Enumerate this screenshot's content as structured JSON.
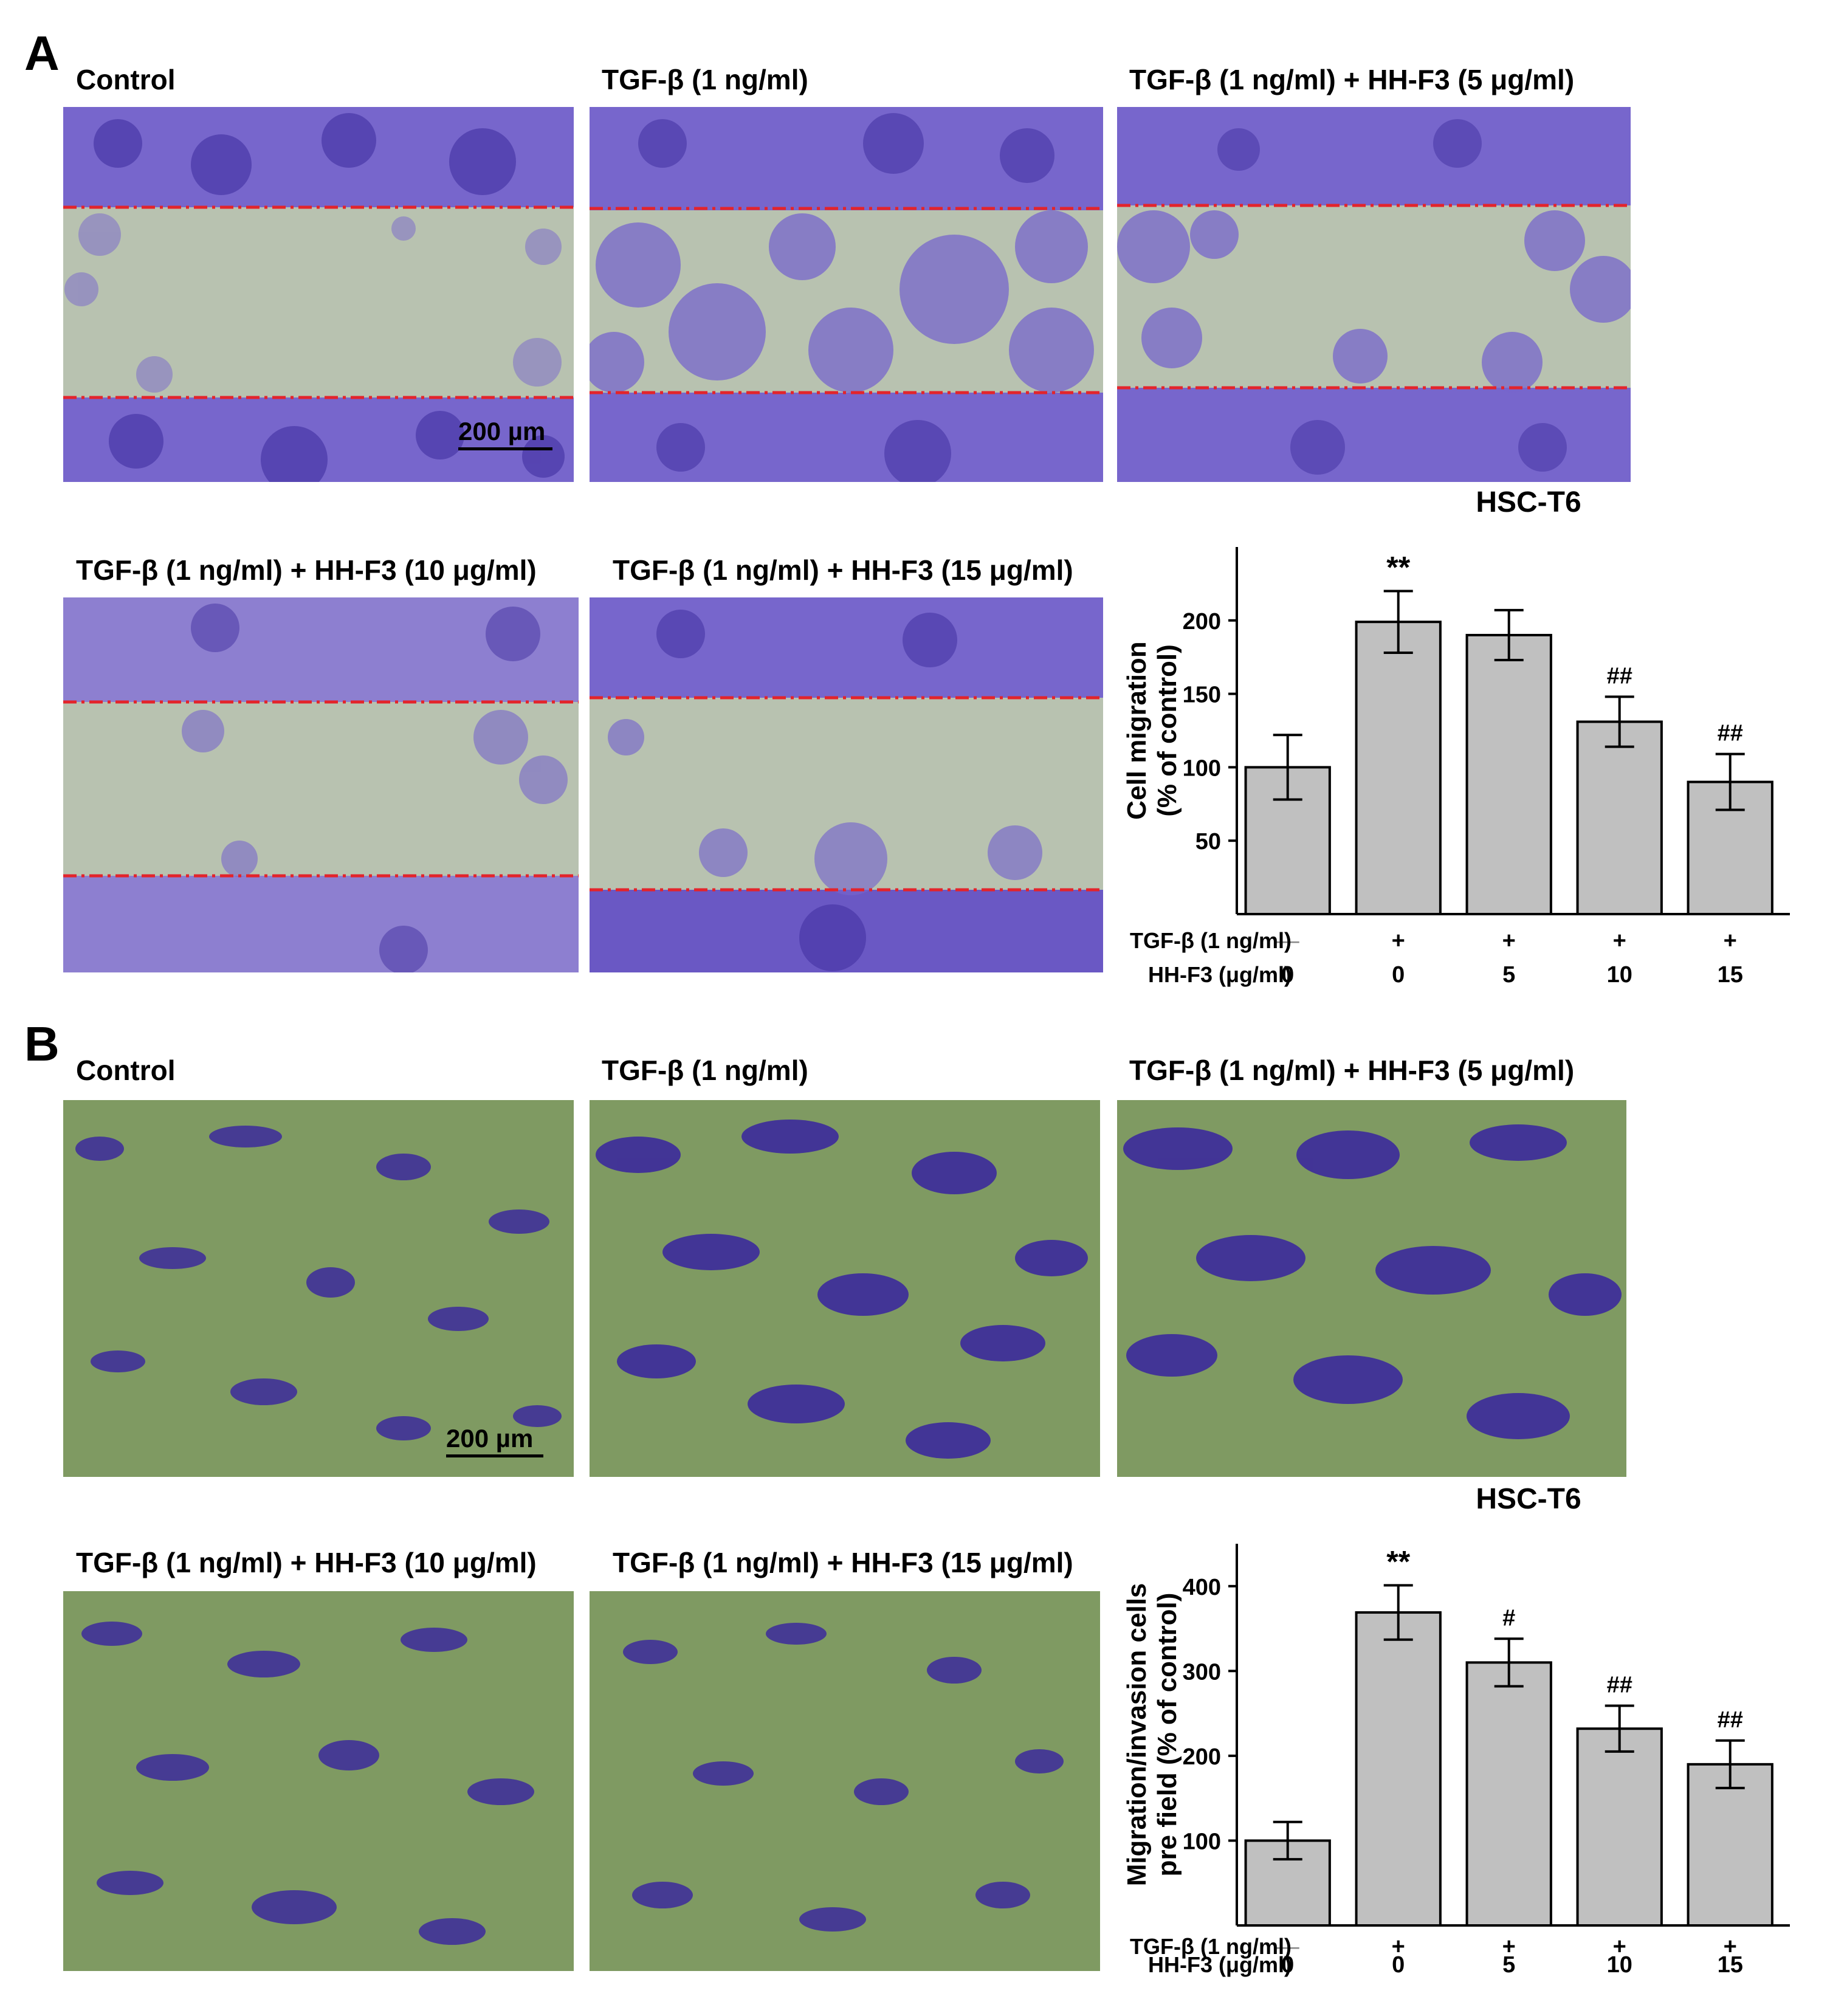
{
  "panels": [
    {
      "letter": "A",
      "scale_bar": "200 µm",
      "images": [
        {
          "label": "Control"
        },
        {
          "label": "TGF-β (1 ng/ml)"
        },
        {
          "label": "TGF-β (1 ng/ml) + HH-F3 (5 μg/ml)"
        },
        {
          "label": "TGF-β (1 ng/ml) + HH-F3 (10 μg/ml)"
        },
        {
          "label": "TGF-β (1 ng/ml) + HH-F3 (15 μg/ml)"
        }
      ]
    },
    {
      "letter": "B",
      "scale_bar": "200 µm",
      "images": [
        {
          "label": "Control"
        },
        {
          "label": "TGF-β (1 ng/ml)"
        },
        {
          "label": "TGF-β (1 ng/ml) + HH-F3 (5 μg/ml)"
        },
        {
          "label": "TGF-β (1 ng/ml) + HH-F3 (10 μg/ml)"
        },
        {
          "label": "TGF-β (1 ng/ml) + HH-F3 (15 μg/ml)"
        }
      ]
    }
  ],
  "colors": {
    "bar_fill": "#c0c0c0",
    "wound_line": "#e3242b",
    "stain": "#7766cc",
    "stain_dark": "#3c2a9c",
    "scratch_bg": "#b8c2b0",
    "transwell_bg": "#7f9a62"
  },
  "chart_data": [
    {
      "type": "bar",
      "title": "HSC-T6",
      "ylabel_lines": [
        "Cell migration",
        "(% of control)"
      ],
      "y_ticks": [
        50,
        100,
        150,
        200
      ],
      "ylim": [
        0,
        250
      ],
      "row_labels": [
        "TGF-β (1 ng/ml)",
        "HH-F3 (μg/ml)"
      ],
      "tgf_row": [
        "—",
        "+",
        "+",
        "+",
        "+"
      ],
      "hh_row": [
        "0",
        "0",
        "5",
        "10",
        "15"
      ],
      "values": [
        100,
        199,
        190,
        131,
        90
      ],
      "errors": [
        22,
        21,
        17,
        17,
        19
      ],
      "annotations": [
        "",
        "**",
        "",
        "##",
        "##"
      ]
    },
    {
      "type": "bar",
      "title": "HSC-T6",
      "ylabel_lines": [
        "Migration/invasion cells",
        "pre field (% of control)"
      ],
      "y_ticks": [
        100,
        200,
        300,
        400
      ],
      "ylim": [
        0,
        450
      ],
      "row_labels": [
        "TGF-β (1 ng/ml)",
        "HH-F3 (μg/ml)"
      ],
      "tgf_row": [
        "—",
        "+",
        "+",
        "+",
        "+"
      ],
      "hh_row": [
        "0",
        "0",
        "5",
        "10",
        "15"
      ],
      "values": [
        100,
        369,
        310,
        232,
        190
      ],
      "errors": [
        22,
        32,
        28,
        27,
        28
      ],
      "annotations": [
        "",
        "**",
        "#",
        "##",
        "##"
      ]
    }
  ]
}
